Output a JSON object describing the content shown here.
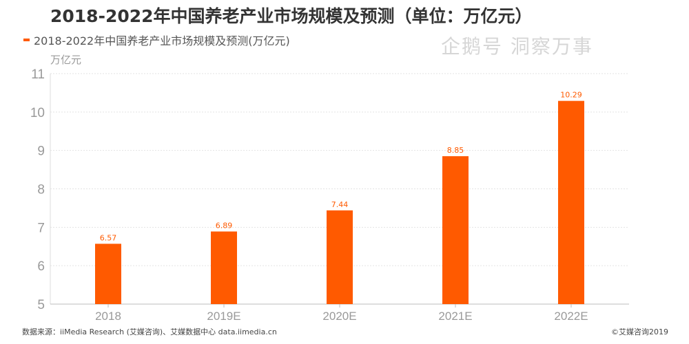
{
  "title": "2018-2022年中国养老产业市场规模及预测（单位：万亿元）",
  "chart_data": {
    "type": "bar",
    "title": "2018-2022年中国养老产业市场规模及预测（单位：万亿元）",
    "categories": [
      "2018",
      "2019E",
      "2020E",
      "2021E",
      "2022E"
    ],
    "series": [
      {
        "name": "2018-2022年中国养老产业市场规模及预测(万亿元)",
        "values": [
          6.57,
          6.89,
          7.44,
          8.85,
          10.29
        ],
        "color": "#ff5a00"
      }
    ],
    "data_labels": [
      "6.57",
      "6.89",
      "7.44",
      "8.85",
      "10.29"
    ],
    "ylabel": "万亿元",
    "ylim": [
      5,
      11
    ],
    "yticks": [
      "5",
      "6",
      "7",
      "8",
      "9",
      "10",
      "11"
    ],
    "grid": true,
    "legend": "top-left"
  },
  "footer": {
    "source": "数据来源：iiMedia Research (艾媒咨询)、艾媒数据中心 data.iimedia.cn",
    "copyright": "©艾媒咨询2019"
  },
  "watermark": "企鹅号 洞察万事"
}
